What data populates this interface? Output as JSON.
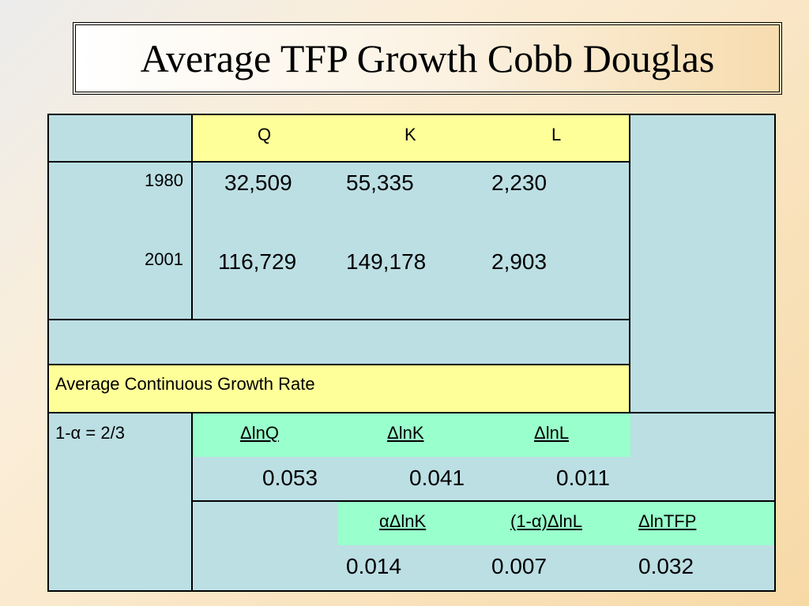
{
  "slide": {
    "title": "Average TFP Growth Cobb Douglas"
  },
  "table": {
    "headers": {
      "q": "Q",
      "k": "K",
      "l": "L"
    },
    "rows": [
      {
        "year": "1980",
        "q": "32,509",
        "k": "55,335",
        "l": "2,230"
      },
      {
        "year": "2001",
        "q": "116,729",
        "k": "149,178",
        "l": "2,903"
      }
    ],
    "growth_label": "Average Continuous Growth Rate",
    "alpha_label": "1-α = 2/3",
    "growth_headers": {
      "dlnq": "ΔlnQ",
      "dlnk": "ΔlnK",
      "dlnl": "ΔlnL"
    },
    "growth_values": {
      "dlnq": "0.053",
      "dlnk": "0.041",
      "dlnl": "0.011"
    },
    "tfp_headers": {
      "adlnk": "αΔlnK",
      "adlnl": "(1-α)ΔlnL",
      "dlntfp": "ΔlnTFP"
    },
    "tfp_values": {
      "adlnk": "0.014",
      "adlnl": "0.007",
      "dlntfp": "0.032"
    }
  },
  "colors": {
    "table_bg": "#bcdfe4",
    "header_yellow": "#ffff99",
    "subheader_green": "#99ffcc"
  }
}
